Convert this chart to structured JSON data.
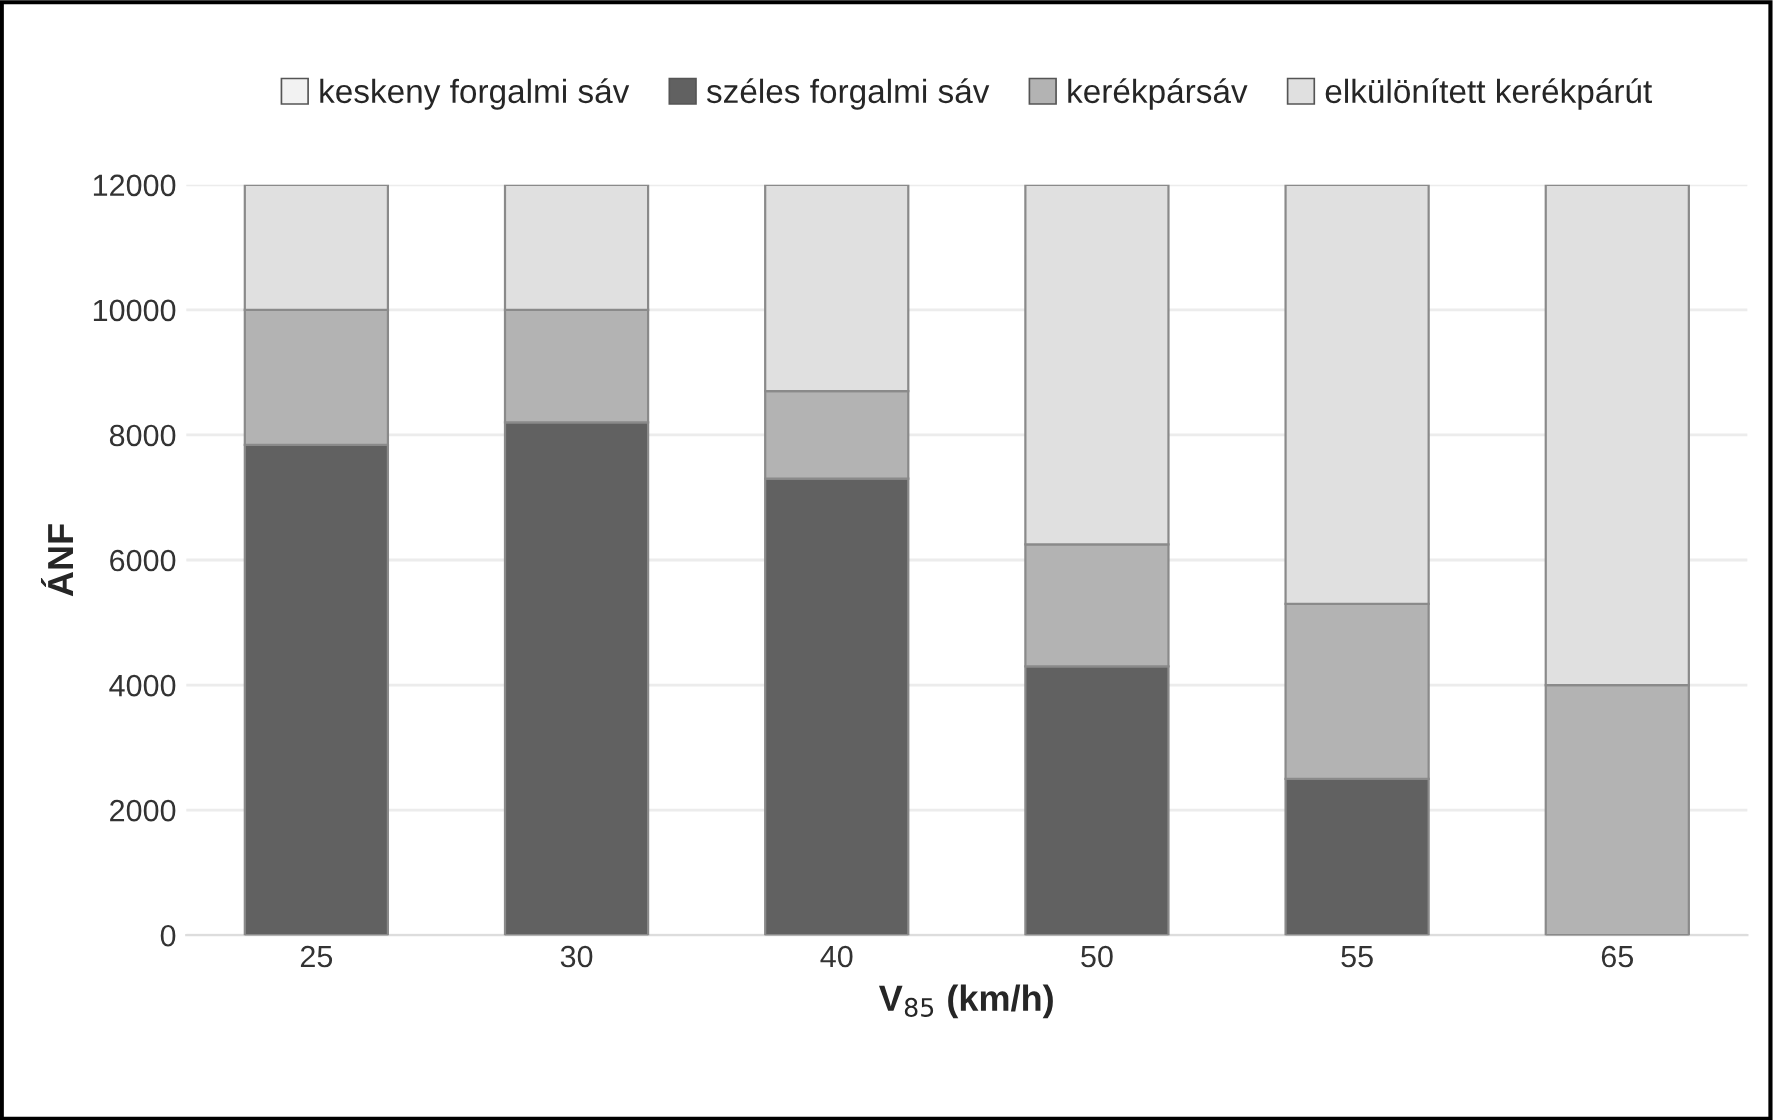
{
  "chart_data": {
    "type": "bar",
    "stacked": true,
    "xlabel": "V$_{85}$ (km/h)",
    "ylabel": "ÁNF",
    "categories": [
      "25",
      "30",
      "40",
      "50",
      "55",
      "65"
    ],
    "series": [
      {
        "name": "keskeny forgalmi sáv",
        "color": "#f2f2f2",
        "values": [
          0,
          0,
          0,
          0,
          0,
          0
        ]
      },
      {
        "name": "széles forgalmi sáv",
        "color": "#616161",
        "values": [
          7840,
          8200,
          7300,
          4300,
          2500,
          0
        ]
      },
      {
        "name": "kerékpársáv",
        "color": "#b3b3b3",
        "values": [
          2160,
          1800,
          1400,
          1950,
          2800,
          4000
        ]
      },
      {
        "name": "elkülönített kerékpárút",
        "color": "#e0e0e0",
        "values": [
          2000,
          2000,
          3300,
          5750,
          6700,
          8000
        ]
      }
    ],
    "ylim": [
      0,
      12000
    ],
    "yticks": [
      0,
      2000,
      4000,
      6000,
      8000,
      10000,
      12000
    ],
    "grid": "y",
    "legend": "top"
  }
}
